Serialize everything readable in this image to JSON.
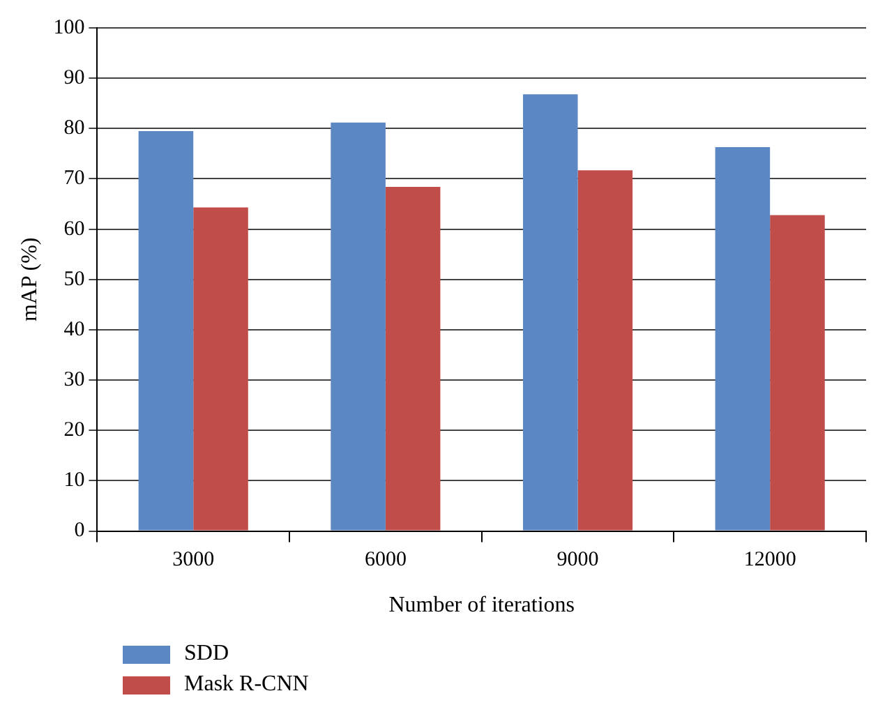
{
  "chart_data": {
    "type": "bar",
    "categories": [
      "3000",
      "6000",
      "9000",
      "12000"
    ],
    "series": [
      {
        "name": "SDD",
        "color": "#5b87c3",
        "values": [
          79.5,
          81.2,
          86.8,
          76.3
        ]
      },
      {
        "name": "Mask R-CNN",
        "color": "#c04d49",
        "values": [
          64.3,
          68.4,
          71.7,
          62.8
        ]
      }
    ],
    "xlabel": "Number of iterations",
    "ylabel": "mAP (%)",
    "ylim": [
      0,
      100
    ],
    "yticks": [
      0,
      10,
      20,
      30,
      40,
      50,
      60,
      70,
      80,
      90,
      100
    ],
    "grid": "y",
    "legend": "bottom left"
  }
}
